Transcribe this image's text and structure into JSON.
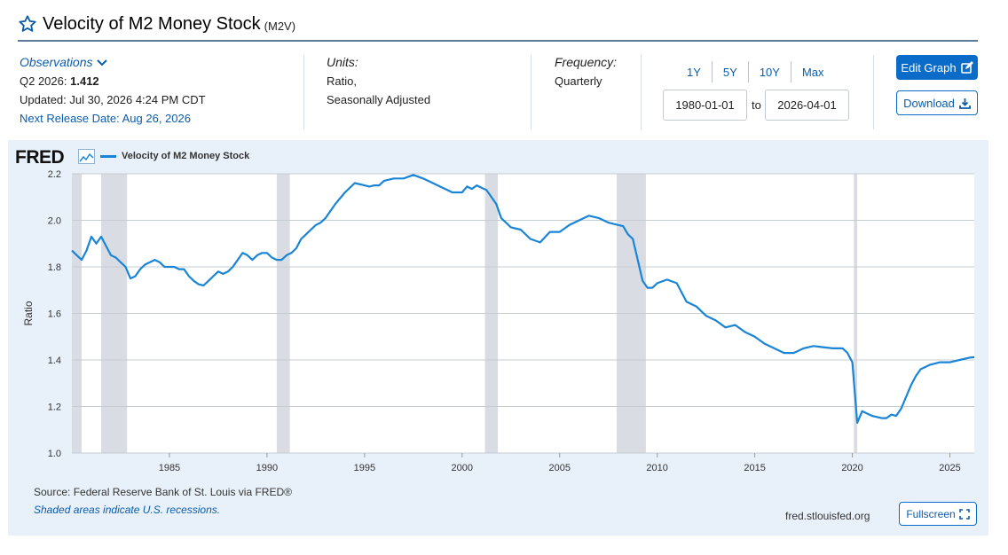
{
  "header": {
    "title": "Velocity of M2 Money Stock",
    "series_id": "(M2V)"
  },
  "observations": {
    "label": "Observations",
    "period": "Q2 2026:",
    "value": "1.412",
    "updated": "Updated: Jul 30, 2026 4:24 PM CDT",
    "next_release": "Next Release Date: Aug 26, 2026"
  },
  "units": {
    "label": "Units:",
    "line1": "Ratio,",
    "line2": "Seasonally Adjusted"
  },
  "frequency": {
    "label": "Frequency:",
    "value": "Quarterly"
  },
  "range": {
    "buttons": [
      "1Y",
      "5Y",
      "10Y",
      "Max"
    ],
    "start": "1980-01-01",
    "to_label": "to",
    "end": "2026-04-01"
  },
  "buttons": {
    "edit": "Edit Graph",
    "download": "Download",
    "fullscreen": "Fullscreen"
  },
  "chart_header": {
    "logo": "FRED",
    "legend": "Velocity of M2 Money Stock"
  },
  "footer": {
    "source": "Source: Federal Reserve Bank of St. Louis via FRED®",
    "shading_note": "Shaded areas indicate U.S. recessions.",
    "url": "fred.stlouisfed.org"
  },
  "colors": {
    "series": "#1a85d6",
    "recession": "#d9dde3",
    "panel": "#e8f1fa",
    "accent": "#0b6bc8"
  },
  "chart_data": {
    "type": "line",
    "ylabel": "Ratio",
    "xlim": [
      1980.0,
      2026.25
    ],
    "ylim": [
      1.0,
      2.2
    ],
    "yticks": [
      1.0,
      1.2,
      1.4,
      1.6,
      1.8,
      2.0,
      2.2
    ],
    "ytick_labels": [
      "1.0",
      "1.2",
      "1.4",
      "1.6",
      "1.8",
      "2.0",
      "2.2"
    ],
    "xticks": [
      1985,
      1990,
      1995,
      2000,
      2005,
      2010,
      2015,
      2020,
      2025
    ],
    "xtick_labels": [
      "1985",
      "1990",
      "1995",
      "2000",
      "2005",
      "2010",
      "2015",
      "2020",
      "2025"
    ],
    "grid": true,
    "recessions": [
      [
        1980.0,
        1980.5
      ],
      [
        1981.5,
        1982.83
      ],
      [
        1990.5,
        1991.17
      ],
      [
        2001.17,
        2001.83
      ],
      [
        2007.92,
        2009.42
      ],
      [
        2020.08,
        2020.25
      ]
    ],
    "series": [
      {
        "name": "Velocity of M2 Money Stock",
        "x": [
          1980.0,
          1980.25,
          1980.5,
          1980.75,
          1981.0,
          1981.25,
          1981.5,
          1981.75,
          1982.0,
          1982.25,
          1982.5,
          1982.75,
          1983.0,
          1983.25,
          1983.5,
          1983.75,
          1984.0,
          1984.25,
          1984.5,
          1984.75,
          1985.0,
          1985.25,
          1985.5,
          1985.75,
          1986.0,
          1986.25,
          1986.5,
          1986.75,
          1987.0,
          1987.25,
          1987.5,
          1987.75,
          1988.0,
          1988.25,
          1988.5,
          1988.75,
          1989.0,
          1989.25,
          1989.5,
          1989.75,
          1990.0,
          1990.25,
          1990.5,
          1990.75,
          1991.0,
          1991.25,
          1991.5,
          1991.75,
          1992.0,
          1992.25,
          1992.5,
          1992.75,
          1993.0,
          1993.5,
          1994.0,
          1994.5,
          1995.0,
          1995.25,
          1995.5,
          1995.75,
          1996.0,
          1996.5,
          1997.0,
          1997.5,
          1998.0,
          1998.5,
          1999.0,
          1999.5,
          2000.0,
          2000.25,
          2000.5,
          2000.75,
          2001.0,
          2001.25,
          2001.5,
          2001.75,
          2002.0,
          2002.5,
          2003.0,
          2003.5,
          2004.0,
          2004.5,
          2005.0,
          2005.5,
          2006.0,
          2006.5,
          2007.0,
          2007.5,
          2008.0,
          2008.25,
          2008.5,
          2008.75,
          2009.0,
          2009.25,
          2009.5,
          2009.75,
          2010.0,
          2010.5,
          2011.0,
          2011.5,
          2012.0,
          2012.5,
          2013.0,
          2013.5,
          2014.0,
          2014.5,
          2015.0,
          2015.5,
          2016.0,
          2016.5,
          2017.0,
          2017.5,
          2018.0,
          2018.5,
          2019.0,
          2019.5,
          2019.75,
          2020.0,
          2020.25,
          2020.5,
          2020.75,
          2021.0,
          2021.25,
          2021.5,
          2021.75,
          2022.0,
          2022.25,
          2022.5,
          2022.75,
          2023.0,
          2023.25,
          2023.5,
          2023.75,
          2024.0,
          2024.5,
          2025.0,
          2025.5,
          2026.0,
          2026.25
        ],
        "values": [
          1.87,
          1.85,
          1.83,
          1.87,
          1.93,
          1.9,
          1.93,
          1.89,
          1.85,
          1.84,
          1.82,
          1.8,
          1.75,
          1.76,
          1.79,
          1.81,
          1.82,
          1.83,
          1.82,
          1.8,
          1.8,
          1.8,
          1.79,
          1.79,
          1.76,
          1.74,
          1.725,
          1.72,
          1.74,
          1.76,
          1.78,
          1.77,
          1.78,
          1.8,
          1.83,
          1.86,
          1.85,
          1.83,
          1.85,
          1.86,
          1.86,
          1.84,
          1.83,
          1.83,
          1.85,
          1.86,
          1.88,
          1.92,
          1.94,
          1.96,
          1.98,
          1.99,
          2.01,
          2.07,
          2.12,
          2.16,
          2.15,
          2.145,
          2.15,
          2.15,
          2.17,
          2.18,
          2.18,
          2.195,
          2.18,
          2.16,
          2.14,
          2.12,
          2.12,
          2.145,
          2.135,
          2.15,
          2.14,
          2.13,
          2.1,
          2.07,
          2.01,
          1.97,
          1.96,
          1.92,
          1.905,
          1.95,
          1.95,
          1.98,
          2.0,
          2.02,
          2.01,
          1.99,
          1.98,
          1.975,
          1.94,
          1.92,
          1.83,
          1.74,
          1.71,
          1.71,
          1.73,
          1.745,
          1.73,
          1.65,
          1.63,
          1.59,
          1.57,
          1.54,
          1.55,
          1.52,
          1.5,
          1.47,
          1.45,
          1.43,
          1.43,
          1.45,
          1.46,
          1.455,
          1.45,
          1.45,
          1.43,
          1.39,
          1.13,
          1.18,
          1.17,
          1.16,
          1.155,
          1.15,
          1.15,
          1.165,
          1.16,
          1.19,
          1.24,
          1.29,
          1.33,
          1.36,
          1.37,
          1.38,
          1.39,
          1.39,
          1.4,
          1.41,
          1.412
        ]
      }
    ]
  }
}
